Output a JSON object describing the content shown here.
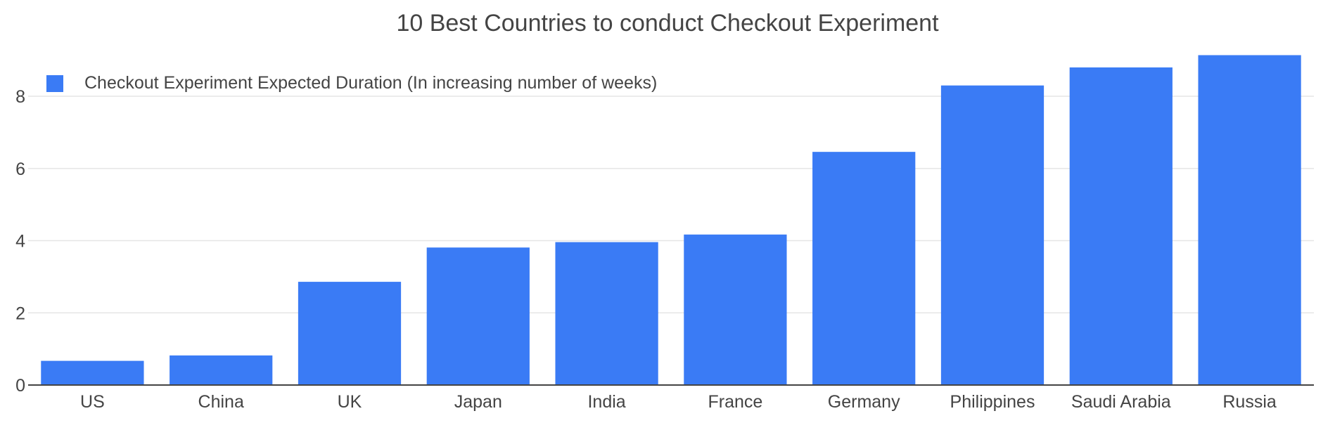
{
  "colors": {
    "bar": "#3a7bf5",
    "grid": "#e6e6e6",
    "axis": "#444444",
    "text": "#444444"
  },
  "chart_data": {
    "type": "bar",
    "title": "10 Best Countries to conduct Checkout Experiment",
    "xlabel": "",
    "ylabel": "",
    "categories": [
      "US",
      "China",
      "UK",
      "Japan",
      "India",
      "France",
      "Germany",
      "Philippines",
      "Saudi Arabia",
      "Russia"
    ],
    "series": [
      {
        "name": "Checkout Experiment Expected Duration (In increasing number of weeks)",
        "values": [
          0.67,
          0.82,
          2.86,
          3.81,
          3.96,
          4.17,
          6.46,
          8.3,
          8.8,
          9.14
        ]
      }
    ],
    "ylim": [
      0,
      9.5
    ],
    "yticks": [
      0,
      2,
      4,
      6,
      8
    ],
    "grid": true,
    "legend_position": "top-left"
  }
}
